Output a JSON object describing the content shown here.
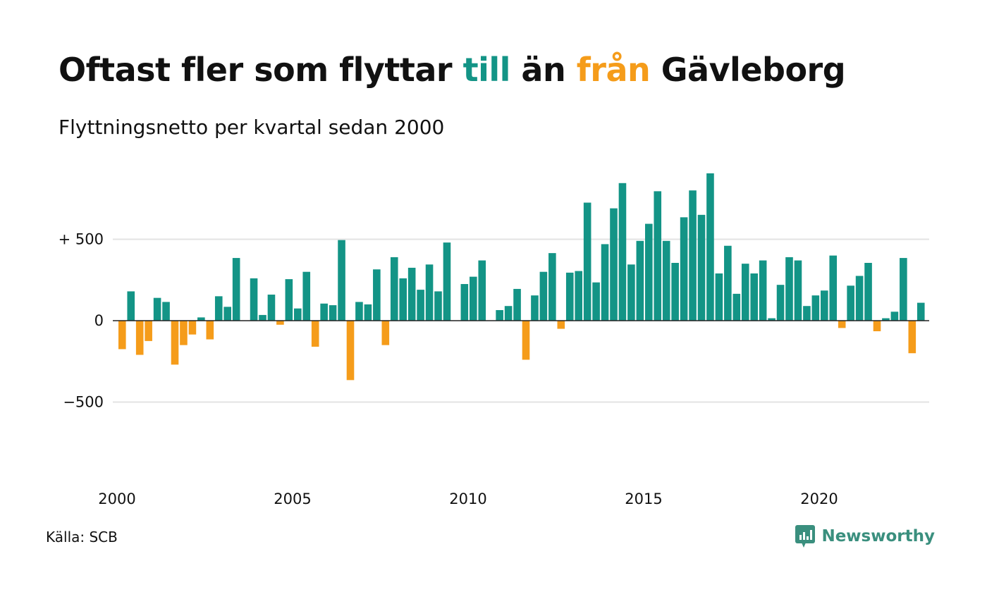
{
  "title": {
    "part1": "Oftast fler som flyttar ",
    "part2": "till",
    "part3": " än ",
    "part4": "från",
    "part5": " Gävleborg"
  },
  "subtitle": "Flyttningsnetto per kvartal sedan 2000",
  "source": "Källa: SCB",
  "brand": "Newsworthy",
  "colors": {
    "positive": "#139486",
    "negative": "#f59c1a",
    "grid": "#e3e3e3",
    "baseline": "#222222",
    "text": "#111111"
  },
  "chart_data": {
    "type": "bar",
    "x_start": "2000-Q1",
    "y_ticks": [
      {
        "value": 500,
        "label": "+ 500"
      },
      {
        "value": 0,
        "label": "0"
      },
      {
        "value": -500,
        "label": "−500"
      }
    ],
    "x_ticks": [
      {
        "value": 2000,
        "label": "2000"
      },
      {
        "value": 2005,
        "label": "2005"
      },
      {
        "value": 2010,
        "label": "2010"
      },
      {
        "value": 2015,
        "label": "2015"
      },
      {
        "value": 2020,
        "label": "2020"
      }
    ],
    "ylim": [
      -1000,
      930
    ],
    "values": [
      -175,
      180,
      -210,
      -125,
      140,
      115,
      -270,
      -150,
      -85,
      20,
      -115,
      150,
      85,
      385,
      0,
      260,
      35,
      160,
      -25,
      255,
      75,
      300,
      -160,
      105,
      95,
      495,
      -365,
      115,
      100,
      315,
      -150,
      390,
      260,
      325,
      190,
      345,
      180,
      480,
      0,
      225,
      270,
      370,
      0,
      65,
      90,
      195,
      -240,
      155,
      300,
      415,
      -50,
      295,
      305,
      725,
      235,
      470,
      690,
      845,
      345,
      490,
      595,
      795,
      490,
      355,
      635,
      800,
      650,
      905,
      290,
      460,
      165,
      350,
      290,
      370,
      15,
      220,
      390,
      370,
      90,
      155,
      185,
      400,
      -45,
      215,
      275,
      355,
      -65,
      15,
      55,
      385,
      -200,
      110
    ]
  }
}
